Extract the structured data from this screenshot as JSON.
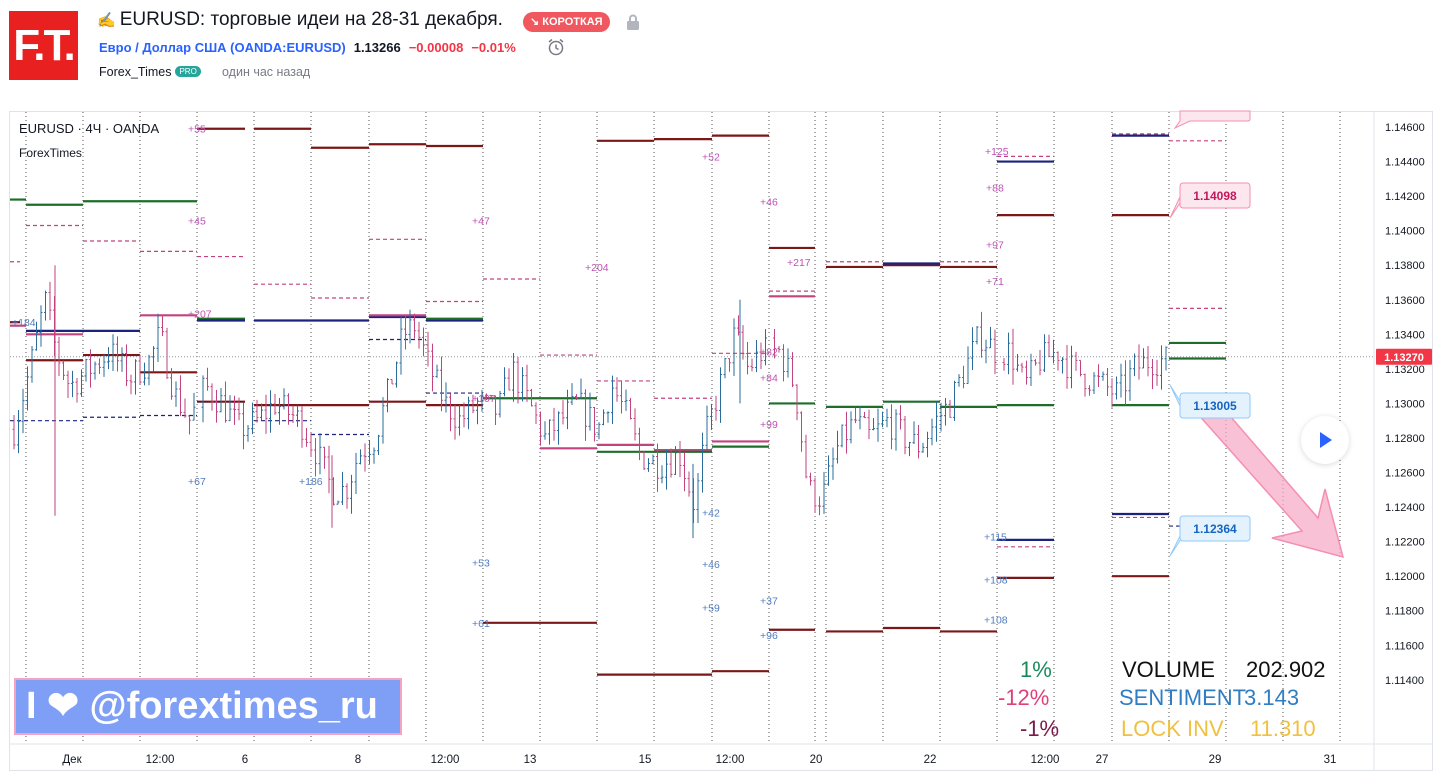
{
  "header": {
    "logo_text": "F.T.",
    "title": "EURUSD: торговые идеи на 28-31 декабря.",
    "direction_badge": "↘ КОРОТКАЯ",
    "symbol_name": "Евро / Доллар США (OANDA:EURUSD)",
    "price": "1.13266",
    "change": "−0.00008",
    "change_pct": "−0.01%",
    "author": "Forex_Times",
    "author_badge": "PRO",
    "published": "один час назад"
  },
  "colors": {
    "up_candle": "#2a6c9a",
    "down_candle": "#c2437e",
    "resistance": "#7b1717",
    "support_green": "#1e6e2a",
    "support_blue": "#1a237e",
    "label_pink": "#c050b5",
    "label_blue": "#4d7cc2",
    "current_price_bg": "#f23645",
    "arrow_pink": "#f7a6c3"
  },
  "chart_data": {
    "type": "candlestick",
    "symbol_label": "EURUSD · 4Ч · OANDA",
    "indicator_label": "ForexTimes",
    "ylim": [
      1.1135,
      1.1465
    ],
    "y_ticks": [
      "1.14600",
      "1.14400",
      "1.14200",
      "1.14000",
      "1.13800",
      "1.13600",
      "1.13400",
      "1.13200",
      "1.13000",
      "1.12800",
      "1.12600",
      "1.12400",
      "1.12200",
      "1.12000",
      "1.11800",
      "1.11600",
      "1.11400"
    ],
    "x_ticks": [
      "Дек",
      "12:00",
      "6",
      "8",
      "12:00",
      "13",
      "15",
      "12:00",
      "20",
      "22",
      "12:00",
      "27",
      "29",
      "31"
    ],
    "current_price": "1.13270",
    "callouts": [
      {
        "label": "1.14098",
        "level": 1.14098,
        "style": "pink"
      },
      {
        "label": "1.13005",
        "level": 1.13005,
        "style": "blue"
      },
      {
        "label": "1.12364",
        "level": 1.12364,
        "style": "blue"
      }
    ],
    "pip_labels": [
      {
        "text": "+55",
        "level": 1.1459,
        "style": "pink"
      },
      {
        "text": "+45",
        "level": 1.1406,
        "style": "pink"
      },
      {
        "text": "+47",
        "level": 1.1406,
        "style": "pink"
      },
      {
        "text": "+204",
        "level": 1.1379,
        "style": "pink"
      },
      {
        "text": "+52",
        "level": 1.1443,
        "style": "pink"
      },
      {
        "text": "+46",
        "level": 1.1417,
        "style": "pink"
      },
      {
        "text": "+217",
        "level": 1.1382,
        "style": "pink"
      },
      {
        "text": "+125",
        "level": 1.1446,
        "style": "pink"
      },
      {
        "text": "+88",
        "level": 1.1425,
        "style": "pink"
      },
      {
        "text": "+97",
        "level": 1.1392,
        "style": "pink"
      },
      {
        "text": "+71",
        "level": 1.1371,
        "style": "pink"
      },
      {
        "text": "+184",
        "level": 1.1347,
        "style": "blue"
      },
      {
        "text": "+207",
        "level": 1.1352,
        "style": "pink"
      },
      {
        "text": "+107",
        "level": 1.1303,
        "style": "pink"
      },
      {
        "text": "+82",
        "level": 1.133,
        "style": "pink"
      },
      {
        "text": "+84",
        "level": 1.1315,
        "style": "pink"
      },
      {
        "text": "+99",
        "level": 1.1288,
        "style": "pink"
      },
      {
        "text": "+67",
        "level": 1.1255,
        "style": "blue"
      },
      {
        "text": "+186",
        "level": 1.1255,
        "style": "blue"
      },
      {
        "text": "+53",
        "level": 1.1208,
        "style": "blue"
      },
      {
        "text": "+42",
        "level": 1.1237,
        "style": "blue"
      },
      {
        "text": "+46",
        "level": 1.1207,
        "style": "blue"
      },
      {
        "text": "+59",
        "level": 1.1182,
        "style": "blue"
      },
      {
        "text": "+37",
        "level": 1.1186,
        "style": "blue"
      },
      {
        "text": "+96",
        "level": 1.1166,
        "style": "blue"
      },
      {
        "text": "+61",
        "level": 1.1173,
        "style": "blue"
      },
      {
        "text": "+115",
        "level": 1.1223,
        "style": "blue"
      },
      {
        "text": "+108",
        "level": 1.1198,
        "style": "blue"
      },
      {
        "text": "+108",
        "level": 1.1175,
        "style": "blue"
      }
    ]
  },
  "overlay": {
    "banner_text": "I ❤ @forextimes_ru",
    "pct_1": "1%",
    "pct_2": "-12%",
    "pct_3": "-1%",
    "volume_label": "VOLUME",
    "volume_value": "202.902",
    "sentiment_label": "SENTIMENT",
    "sentiment_value": "3.143",
    "lock_label": "LOCK INV",
    "lock_value": "11.310"
  }
}
